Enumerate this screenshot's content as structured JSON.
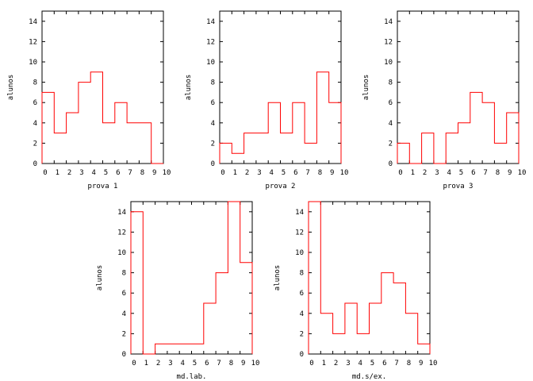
{
  "chart_data": [
    {
      "type": "histogram-step",
      "xlabel": "prova 1",
      "ylabel": "alunos",
      "xlim": [
        0,
        10
      ],
      "ylim": [
        0,
        15
      ],
      "xticks": [
        "0",
        "1",
        "2",
        "3",
        "4",
        "5",
        "6",
        "7",
        "8",
        "9",
        "10"
      ],
      "yticks": [
        "0",
        "2",
        "4",
        "6",
        "8",
        "10",
        "12",
        "14"
      ],
      "bin_edges": [
        0,
        1,
        2,
        3,
        4,
        5,
        6,
        7,
        8,
        9,
        10
      ],
      "values": [
        7,
        3,
        5,
        8,
        9,
        4,
        6,
        4,
        4,
        0
      ],
      "color": "#ff0000"
    },
    {
      "type": "histogram-step",
      "xlabel": "prova 2",
      "ylabel": "alunos",
      "xlim": [
        0,
        10
      ],
      "ylim": [
        0,
        15
      ],
      "xticks": [
        "0",
        "1",
        "2",
        "3",
        "4",
        "5",
        "6",
        "7",
        "8",
        "9",
        "10"
      ],
      "yticks": [
        "0",
        "2",
        "4",
        "6",
        "8",
        "10",
        "12",
        "14"
      ],
      "bin_edges": [
        0,
        1,
        2,
        3,
        4,
        5,
        6,
        7,
        8,
        9,
        10
      ],
      "values": [
        2,
        1,
        3,
        3,
        6,
        3,
        6,
        2,
        9,
        6
      ],
      "color": "#ff0000"
    },
    {
      "type": "histogram-step",
      "xlabel": "prova 3",
      "ylabel": "alunos",
      "xlim": [
        0,
        10
      ],
      "ylim": [
        0,
        15
      ],
      "xticks": [
        "0",
        "1",
        "2",
        "3",
        "4",
        "5",
        "6",
        "7",
        "8",
        "9",
        "10"
      ],
      "yticks": [
        "0",
        "2",
        "4",
        "6",
        "8",
        "10",
        "12",
        "14"
      ],
      "bin_edges": [
        0,
        1,
        2,
        3,
        4,
        5,
        6,
        7,
        8,
        9,
        10
      ],
      "values": [
        2,
        0,
        3,
        0,
        3,
        4,
        7,
        6,
        2,
        5
      ],
      "color": "#ff0000"
    },
    {
      "type": "histogram-step",
      "xlabel": "md.lab.",
      "ylabel": "alunos",
      "xlim": [
        0,
        10
      ],
      "ylim": [
        0,
        15
      ],
      "xticks": [
        "0",
        "1",
        "2",
        "3",
        "4",
        "5",
        "6",
        "7",
        "8",
        "9",
        "10"
      ],
      "yticks": [
        "0",
        "2",
        "4",
        "6",
        "8",
        "10",
        "12",
        "14"
      ],
      "bin_edges": [
        0,
        1,
        2,
        3,
        4,
        5,
        6,
        7,
        8,
        9,
        10
      ],
      "values": [
        14,
        0,
        1,
        1,
        1,
        1,
        5,
        8,
        15,
        9
      ],
      "color": "#ff0000"
    },
    {
      "type": "histogram-step",
      "xlabel": "md.s/ex.",
      "ylabel": "alunos",
      "xlim": [
        0,
        10
      ],
      "ylim": [
        0,
        15
      ],
      "xticks": [
        "0",
        "1",
        "2",
        "3",
        "4",
        "5",
        "6",
        "7",
        "8",
        "9",
        "10"
      ],
      "yticks": [
        "0",
        "2",
        "4",
        "6",
        "8",
        "10",
        "12",
        "14"
      ],
      "bin_edges": [
        0,
        1,
        2,
        3,
        4,
        5,
        6,
        7,
        8,
        9,
        10
      ],
      "values": [
        15,
        4,
        2,
        5,
        2,
        5,
        8,
        7,
        4,
        1
      ],
      "color": "#ff0000"
    }
  ]
}
